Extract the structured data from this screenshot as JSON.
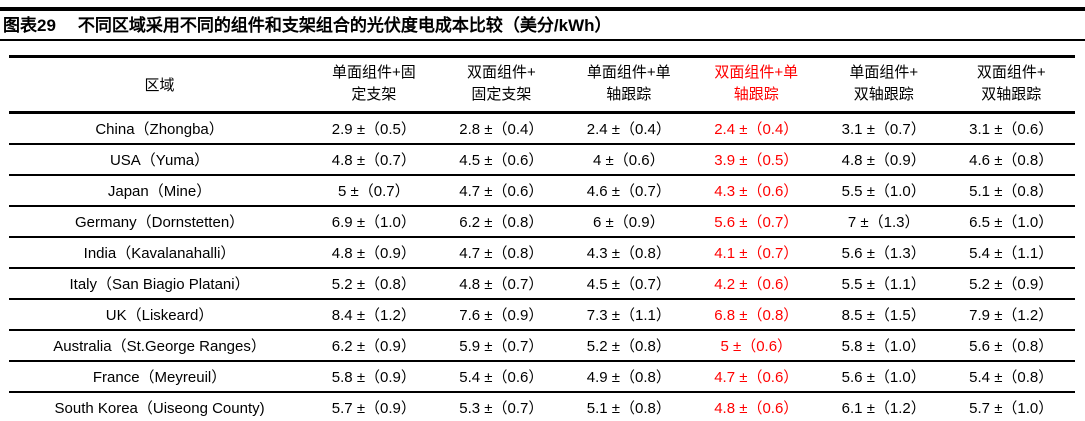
{
  "title": {
    "tag": "图表29",
    "text": "不同区域采用不同的组件和支架组合的光伏度电成本比较（美分/kWh）"
  },
  "colors": {
    "accent_red": "#ff0000",
    "text": "#000000",
    "rule": "#000000"
  },
  "table": {
    "region_header": "区域",
    "columns": [
      {
        "name": "单面组件+固定支架",
        "line1": "单面组件+固",
        "line2": "定支架",
        "highlight": false
      },
      {
        "name": "双面组件+固定支架",
        "line1": "双面组件+",
        "line2": "固定支架",
        "highlight": false
      },
      {
        "name": "单面组件+单轴跟踪",
        "line1": "单面组件+单",
        "line2": "轴跟踪",
        "highlight": false
      },
      {
        "name": "双面组件+单轴跟踪",
        "line1": "双面组件+单",
        "line2": "轴跟踪",
        "highlight": true
      },
      {
        "name": "单面组件+双轴跟踪",
        "line1": "单面组件+",
        "line2": "双轴跟踪",
        "highlight": false
      },
      {
        "name": "双面组件+双轴跟踪",
        "line1": "双面组件+",
        "line2": "双轴跟踪",
        "highlight": false
      }
    ],
    "rows": [
      {
        "region": "China（Zhongba）",
        "values": [
          "2.9 ±（0.5）",
          "2.8 ±（0.4）",
          "2.4 ±（0.4）",
          "2.4 ±（0.4）",
          "3.1 ±（0.7）",
          "3.1 ±（0.6）"
        ]
      },
      {
        "region": "USA（Yuma）",
        "values": [
          "4.8 ±（0.7）",
          "4.5 ±（0.6）",
          "4 ±（0.6）",
          "3.9 ±（0.5）",
          "4.8 ±（0.9）",
          "4.6 ±（0.8）"
        ]
      },
      {
        "region": "Japan（Mine）",
        "values": [
          "5 ±（0.7）",
          "4.7 ±（0.6）",
          "4.6 ±（0.7）",
          "4.3 ±（0.6）",
          "5.5 ±（1.0）",
          "5.1 ±（0.8）"
        ]
      },
      {
        "region": "Germany（Dornstetten）",
        "values": [
          "6.9 ±（1.0）",
          "6.2 ±（0.8）",
          "6 ±（0.9）",
          "5.6 ±（0.7）",
          "7 ±（1.3）",
          "6.5 ±（1.0）"
        ]
      },
      {
        "region": "India（Kavalanahalli）",
        "values": [
          "4.8 ±（0.9）",
          "4.7 ±（0.8）",
          "4.3 ±（0.8）",
          "4.1 ±（0.7）",
          "5.6 ±（1.3）",
          "5.4 ±（1.1）"
        ]
      },
      {
        "region": "Italy（San Biagio Platani）",
        "values": [
          "5.2 ±（0.8）",
          "4.8 ±（0.7）",
          "4.5 ±（0.7）",
          "4.2 ±（0.6）",
          "5.5 ±（1.1）",
          "5.2 ±（0.9）"
        ]
      },
      {
        "region": "UK（Liskeard）",
        "values": [
          "8.4 ±（1.2）",
          "7.6 ±（0.9）",
          "7.3 ±（1.1）",
          "6.8 ±（0.8）",
          "8.5 ±（1.5）",
          "7.9 ±（1.2）"
        ]
      },
      {
        "region": "Australia（St.George Ranges）",
        "values": [
          "6.2 ±（0.9）",
          "5.9 ±（0.7）",
          "5.2 ±（0.8）",
          "5 ±（0.6）",
          "5.8 ±（1.0）",
          "5.6 ±（0.8）"
        ]
      },
      {
        "region": "France（Meyreuil）",
        "values": [
          "5.8 ±（0.9）",
          "5.4 ±（0.6）",
          "4.9 ±（0.8）",
          "4.7 ±（0.6）",
          "5.6 ±（1.0）",
          "5.4 ±（0.8）"
        ]
      },
      {
        "region": "South Korea（Uiseong County)",
        "values": [
          "5.7 ±（0.9）",
          "5.3 ±（0.7）",
          "5.1 ±（0.8）",
          "4.8 ±（0.6）",
          "6.1 ±（1.2）",
          "5.7 ±（1.0）"
        ]
      }
    ]
  },
  "chart_data": {
    "type": "table",
    "title": "图表29 不同区域采用不同的组件和支架组合的光伏度电成本比较（美分/kWh）",
    "unit": "美分/kWh",
    "categories": [
      "China（Zhongba）",
      "USA（Yuma）",
      "Japan（Mine）",
      "Germany（Dornstetten）",
      "India（Kavalanahalli）",
      "Italy（San Biagio Platani）",
      "UK（Liskeard）",
      "Australia（St.George Ranges）",
      "France（Meyreuil）",
      "South Korea（Uiseong County)"
    ],
    "series": [
      {
        "name": "单面组件+固定支架",
        "values": [
          2.9,
          4.8,
          5,
          6.9,
          4.8,
          5.2,
          8.4,
          6.2,
          5.8,
          5.7
        ],
        "errors": [
          0.5,
          0.7,
          0.7,
          1.0,
          0.9,
          0.8,
          1.2,
          0.9,
          0.9,
          0.9
        ]
      },
      {
        "name": "双面组件+固定支架",
        "values": [
          2.8,
          4.5,
          4.7,
          6.2,
          4.7,
          4.8,
          7.6,
          5.9,
          5.4,
          5.3
        ],
        "errors": [
          0.4,
          0.6,
          0.6,
          0.8,
          0.8,
          0.7,
          0.9,
          0.7,
          0.6,
          0.7
        ]
      },
      {
        "name": "单面组件+单轴跟踪",
        "values": [
          2.4,
          4,
          4.6,
          6,
          4.3,
          4.5,
          7.3,
          5.2,
          4.9,
          5.1
        ],
        "errors": [
          0.4,
          0.6,
          0.7,
          0.9,
          0.8,
          0.7,
          1.1,
          0.8,
          0.8,
          0.8
        ]
      },
      {
        "name": "双面组件+单轴跟踪",
        "values": [
          2.4,
          3.9,
          4.3,
          5.6,
          4.1,
          4.2,
          6.8,
          5,
          4.7,
          4.8
        ],
        "errors": [
          0.4,
          0.5,
          0.6,
          0.7,
          0.7,
          0.6,
          0.8,
          0.6,
          0.6,
          0.6
        ],
        "highlighted": true
      },
      {
        "name": "单面组件+双轴跟踪",
        "values": [
          3.1,
          4.8,
          5.5,
          7,
          5.6,
          5.5,
          8.5,
          5.8,
          5.6,
          6.1
        ],
        "errors": [
          0.7,
          0.9,
          1.0,
          1.3,
          1.3,
          1.1,
          1.5,
          1.0,
          1.0,
          1.2
        ]
      },
      {
        "name": "双面组件+双轴跟踪",
        "values": [
          3.1,
          4.6,
          5.1,
          6.5,
          5.4,
          5.2,
          7.9,
          5.6,
          5.4,
          5.7
        ],
        "errors": [
          0.6,
          0.8,
          0.8,
          1.0,
          1.1,
          0.9,
          1.2,
          0.8,
          0.8,
          1.0
        ]
      }
    ],
    "layout": {
      "highlight_color": "#ff0000",
      "highlighted_series": "双面组件+单轴跟踪"
    }
  }
}
